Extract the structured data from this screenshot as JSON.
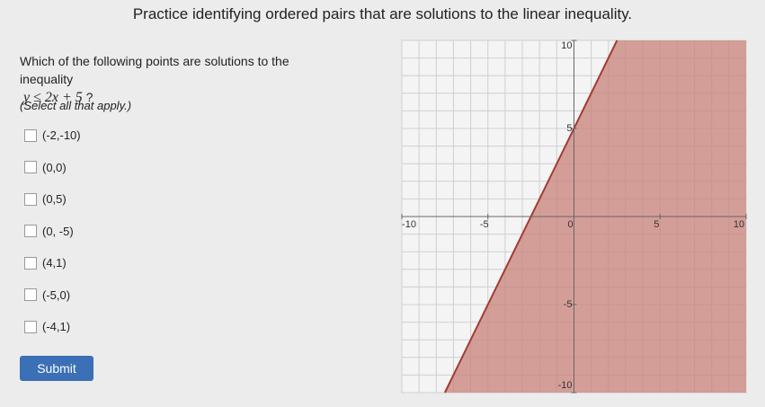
{
  "header": {
    "title": "Practice identifying ordered pairs that are solutions to the linear inequality."
  },
  "question": {
    "text": "Which of the following points are solutions to the inequality",
    "inequality": "y ≤ 2x + 5",
    "end": "?",
    "instruction": "(Select all that apply.)"
  },
  "options": [
    "(-2,-10)",
    "(0,0)",
    "(0,5)",
    "(0, -5)",
    "(4,1)",
    "(-5,0)",
    "(-4,1)"
  ],
  "submit": "Submit",
  "graph": {
    "xlim": [
      -10,
      10
    ],
    "ylim": [
      -10,
      10
    ],
    "xticks": [
      -10,
      -5,
      0,
      5,
      10
    ],
    "yticks": [
      10,
      5,
      -5,
      -10
    ],
    "boundary": {
      "slope": 2,
      "intercept": 5
    },
    "fill_color": "#c9817a",
    "line_color": "#a23b33"
  }
}
